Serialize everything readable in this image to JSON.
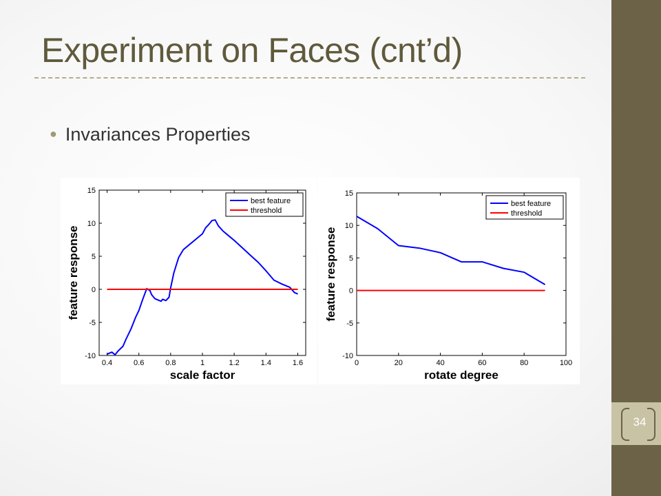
{
  "slide": {
    "title": "Experiment on Faces (cnt’d)",
    "bullets": [
      "Invariances Properties"
    ],
    "page_number": "34",
    "colors": {
      "sidebar": "#6b6247",
      "title": "#5f5a3c",
      "accent": "#c8c3a4"
    }
  },
  "chart_data": [
    {
      "type": "line",
      "xlabel": "scale factor",
      "ylabel": "feature response",
      "xlim": [
        0.35,
        1.65
      ],
      "ylim": [
        -10,
        15
      ],
      "xticks": [
        "0.4",
        "0.6",
        "0.8",
        "1",
        "1.2",
        "1.4",
        "1.6"
      ],
      "xtick_values": [
        0.4,
        0.6,
        0.8,
        1.0,
        1.2,
        1.4,
        1.6
      ],
      "yticks": [
        "-10",
        "-5",
        "0",
        "5",
        "10",
        "15"
      ],
      "ytick_values": [
        -10,
        -5,
        0,
        5,
        10,
        15
      ],
      "legend_position": "top-right",
      "series": [
        {
          "name": "best feature",
          "color": "#0000ff",
          "x": [
            0.4,
            0.43,
            0.45,
            0.47,
            0.5,
            0.52,
            0.55,
            0.58,
            0.6,
            0.62,
            0.64,
            0.65,
            0.67,
            0.68,
            0.7,
            0.72,
            0.74,
            0.75,
            0.77,
            0.79,
            0.8,
            0.82,
            0.85,
            0.88,
            0.92,
            0.96,
            1.0,
            1.02,
            1.04,
            1.06,
            1.08,
            1.1,
            1.13,
            1.17,
            1.2,
            1.25,
            1.3,
            1.35,
            1.4,
            1.45,
            1.5,
            1.55,
            1.58,
            1.6
          ],
          "y": [
            -9.8,
            -9.5,
            -9.9,
            -9.3,
            -8.6,
            -7.5,
            -6.0,
            -4.2,
            -3.2,
            -1.8,
            -0.5,
            0.1,
            -0.2,
            -0.8,
            -1.4,
            -1.6,
            -1.8,
            -1.5,
            -1.7,
            -1.2,
            0.2,
            2.5,
            4.8,
            6.0,
            6.8,
            7.6,
            8.4,
            9.3,
            9.8,
            10.4,
            10.5,
            9.6,
            8.8,
            8.0,
            7.4,
            6.3,
            5.2,
            4.1,
            2.8,
            1.4,
            0.8,
            0.3,
            -0.5,
            -0.7
          ]
        },
        {
          "name": "threshold",
          "color": "#ff0000",
          "x": [
            0.4,
            1.6
          ],
          "y": [
            0,
            0
          ]
        }
      ]
    },
    {
      "type": "line",
      "xlabel": "rotate degree",
      "ylabel": "feature response",
      "xlim": [
        0,
        100
      ],
      "ylim": [
        -10,
        15
      ],
      "xticks": [
        "0",
        "20",
        "40",
        "60",
        "80",
        "100"
      ],
      "xtick_values": [
        0,
        20,
        40,
        60,
        80,
        100
      ],
      "yticks": [
        "-10",
        "-5",
        "0",
        "5",
        "10",
        "15"
      ],
      "ytick_values": [
        -10,
        -5,
        0,
        5,
        10,
        15
      ],
      "legend_position": "top-right",
      "series": [
        {
          "name": "best feature",
          "color": "#0000ff",
          "x": [
            0,
            10,
            20,
            30,
            40,
            50,
            60,
            70,
            80,
            90
          ],
          "y": [
            11.4,
            9.5,
            6.9,
            6.5,
            5.8,
            4.4,
            4.4,
            3.4,
            2.8,
            0.9
          ]
        },
        {
          "name": "threshold",
          "color": "#ff0000",
          "x": [
            0,
            90
          ],
          "y": [
            0,
            0
          ]
        }
      ]
    }
  ]
}
